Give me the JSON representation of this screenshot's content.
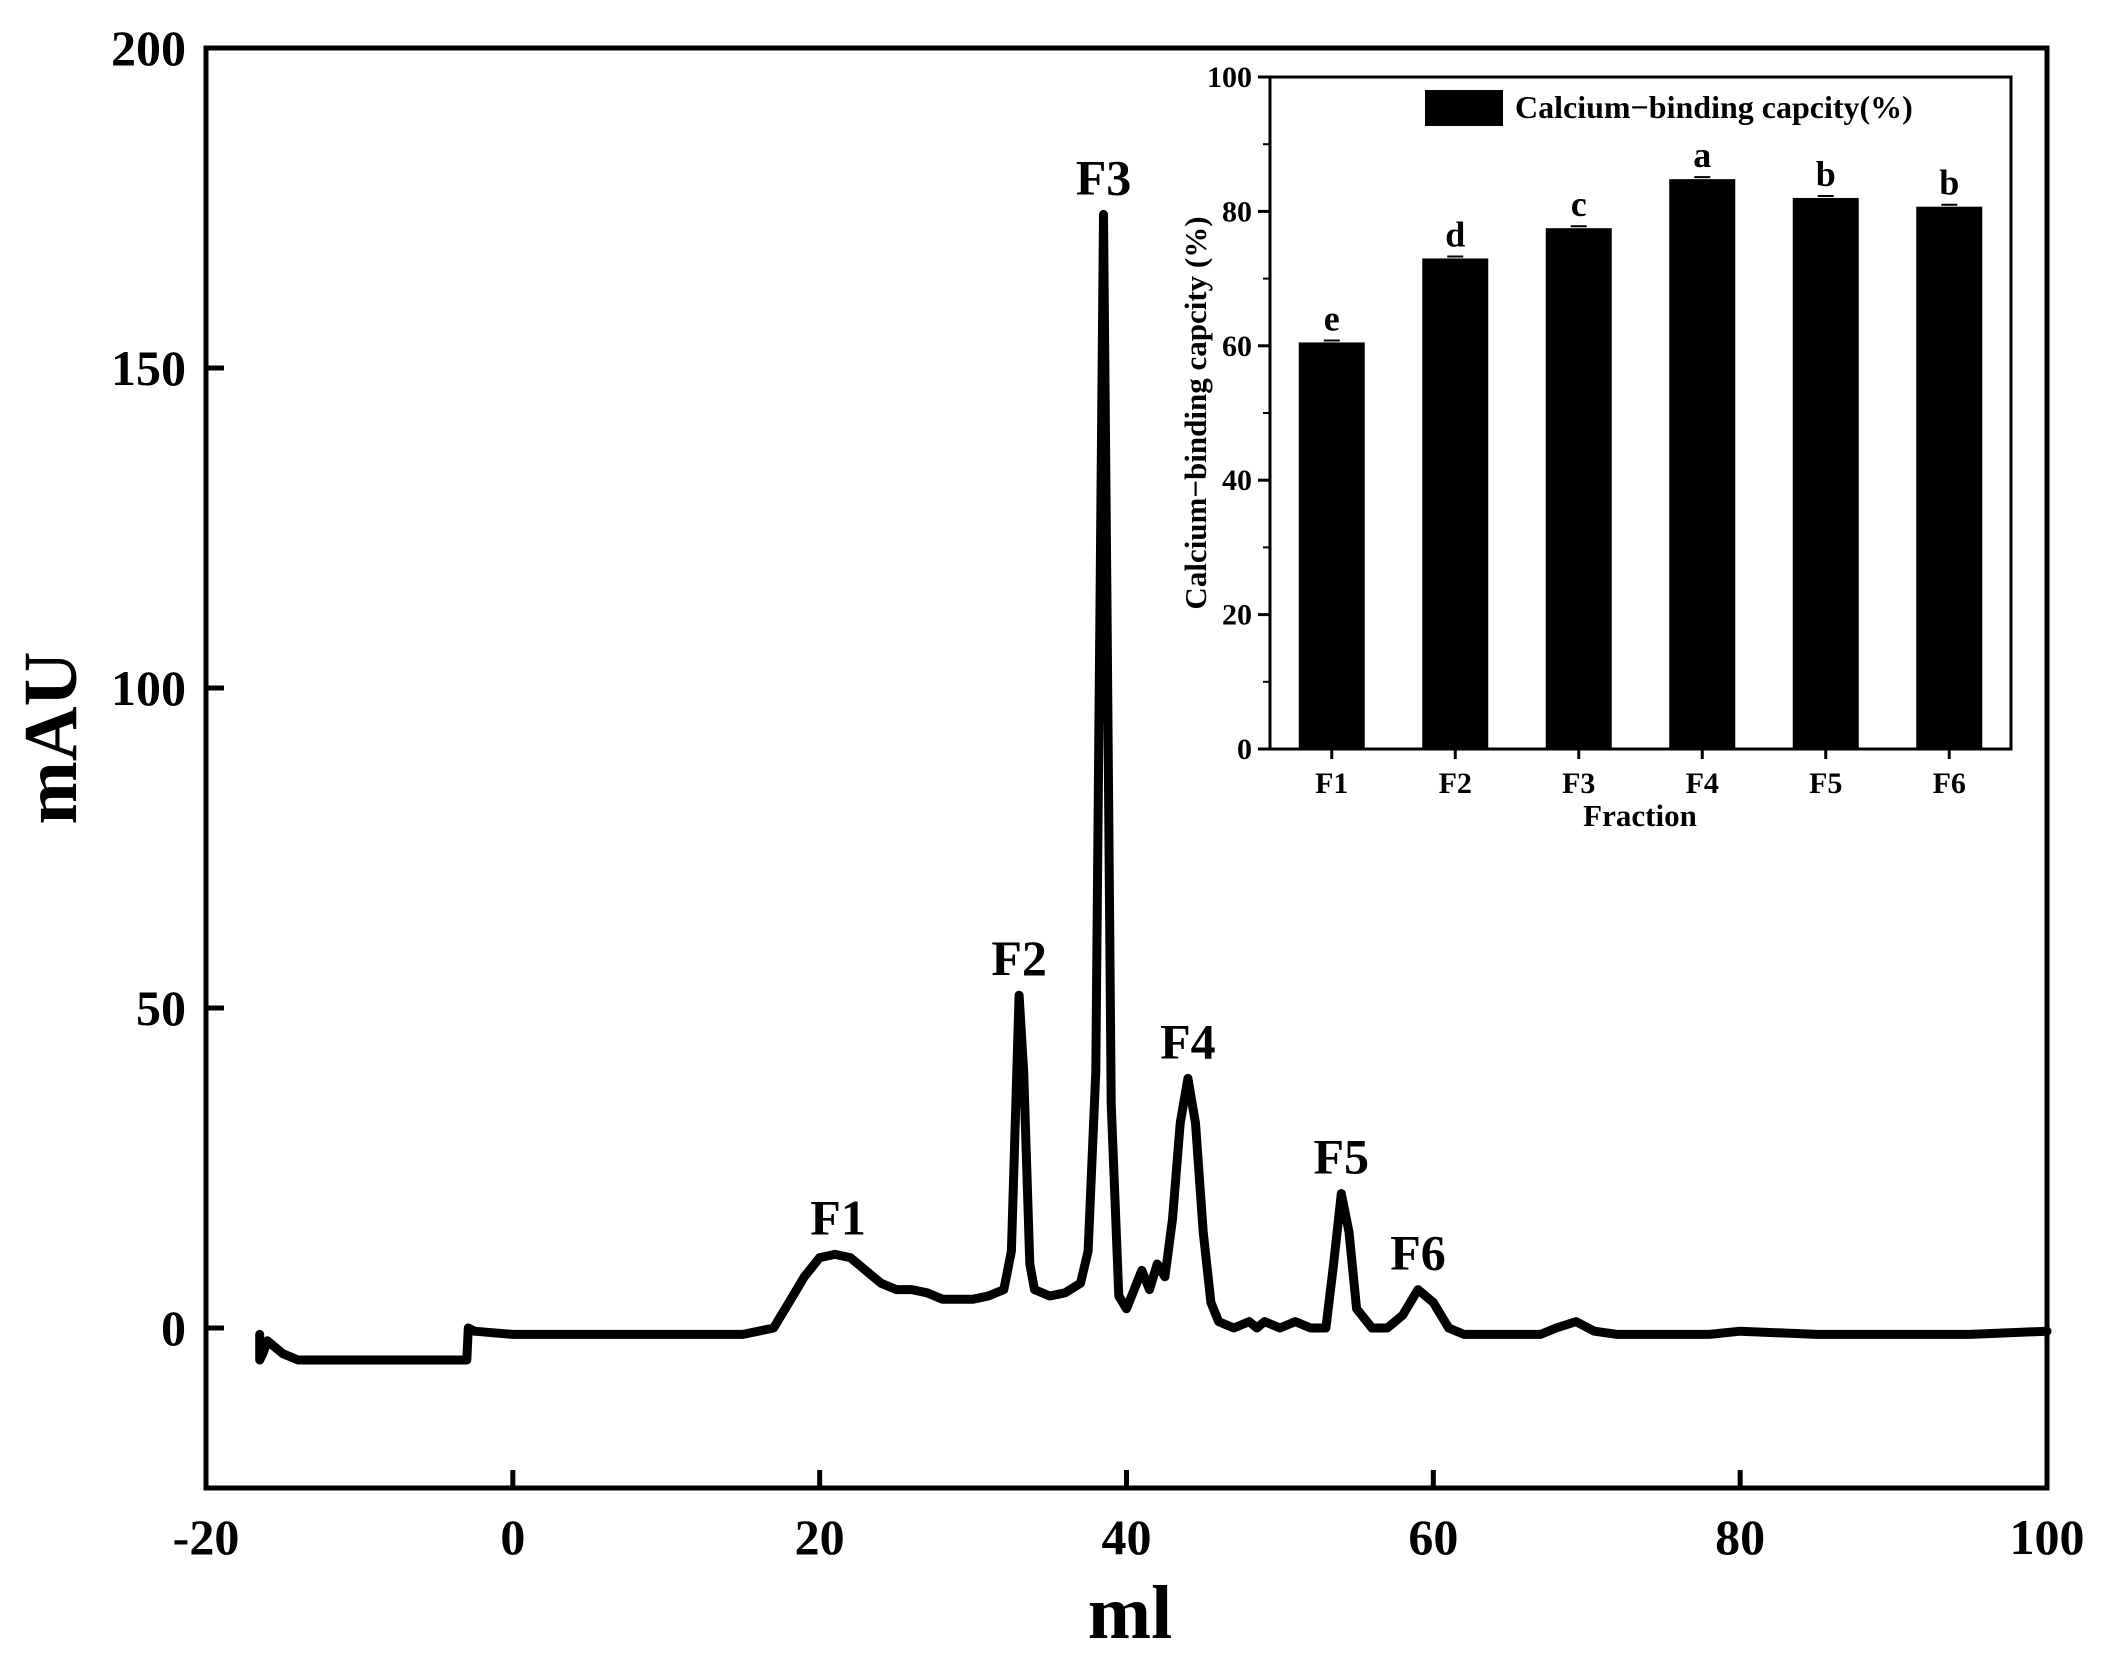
{
  "chart_data": [
    {
      "type": "line",
      "xlabel": "ml",
      "ylabel": "mAU",
      "xlim": [
        -20,
        100
      ],
      "ylim": [
        -25,
        200
      ],
      "xticks": [
        -20,
        0,
        20,
        40,
        60,
        80,
        100
      ],
      "yticks": [
        0,
        50,
        100,
        150,
        200
      ],
      "grid": false,
      "series": [
        {
          "x": [
            -16.5,
            -16.5,
            -16.3,
            -16.0,
            -15.5,
            -15.0,
            -14.0,
            -12.0,
            -8.0,
            -5.0,
            -3.2,
            -3.0,
            -2.9,
            -2.5,
            0,
            5,
            10,
            15,
            17,
            18,
            19,
            20,
            21,
            22,
            23,
            24,
            25,
            26,
            27,
            28,
            29,
            30,
            31,
            32,
            32.5,
            33.0,
            33.3,
            33.7,
            34.0,
            35,
            36,
            37,
            37.5,
            38.0,
            38.3,
            38.5,
            38.7,
            39.0,
            39.5,
            40.0,
            40.5,
            41.0,
            41.5,
            42.0,
            42.5,
            43.0,
            43.5,
            44.0,
            44.5,
            45.0,
            45.5,
            46.0,
            47,
            48,
            48.5,
            49,
            50,
            51,
            52,
            53,
            53.5,
            54.0,
            54.5,
            55.0,
            56,
            57,
            58,
            59.0,
            60,
            61,
            62,
            65,
            67,
            68,
            69.3,
            70.5,
            72,
            75,
            78,
            80,
            85,
            90,
            95,
            100
          ],
          "y": [
            -1,
            -5,
            -4,
            -2,
            -3,
            -4,
            -5,
            -5,
            -5,
            -5,
            -5,
            -5,
            0,
            -0.5,
            -1,
            -1,
            -1,
            -1,
            0,
            4,
            8,
            11,
            11.5,
            11,
            9,
            7,
            6,
            6,
            5.5,
            4.5,
            4.5,
            4.5,
            5,
            6,
            12,
            52,
            40,
            10,
            6,
            5,
            5.5,
            7,
            12,
            40,
            120,
            174,
            120,
            35,
            5,
            3,
            6,
            9,
            6,
            10,
            8,
            17,
            32,
            39,
            32,
            15,
            4,
            1,
            0,
            1,
            0,
            1,
            0,
            1,
            0,
            0,
            10,
            21,
            15,
            3,
            0,
            0,
            2,
            6,
            4,
            0,
            -1,
            -1,
            -1,
            0,
            1,
            -0.5,
            -1,
            -1,
            -1,
            -0.5,
            -1,
            -1,
            -1,
            -0.5
          ]
        }
      ],
      "annotations": [
        {
          "text": "F1",
          "x": 21.2,
          "y": 11.5
        },
        {
          "text": "F2",
          "x": 33.0,
          "y": 52
        },
        {
          "text": "F3",
          "x": 38.5,
          "y": 174
        },
        {
          "text": "F4",
          "x": 44.0,
          "y": 39
        },
        {
          "text": "F5",
          "x": 54.0,
          "y": 21
        },
        {
          "text": "F6",
          "x": 59.0,
          "y": 6
        }
      ]
    },
    {
      "type": "bar",
      "categories": [
        "F1",
        "F2",
        "F3",
        "F4",
        "F5",
        "F6"
      ],
      "series": [
        {
          "name": "Calcium−binding capcity(%)",
          "values": [
            60.5,
            73,
            77.5,
            84.8,
            82,
            80.7
          ]
        }
      ],
      "letters": [
        "e",
        "d",
        "c",
        "a",
        "b",
        "b"
      ],
      "xlabel": "Fraction",
      "ylabel": "Calcium−binding capcity (%)",
      "ylim": [
        0,
        100
      ],
      "yticks": [
        0,
        20,
        40,
        60,
        80,
        100
      ],
      "legend": "top",
      "grid": false
    }
  ]
}
